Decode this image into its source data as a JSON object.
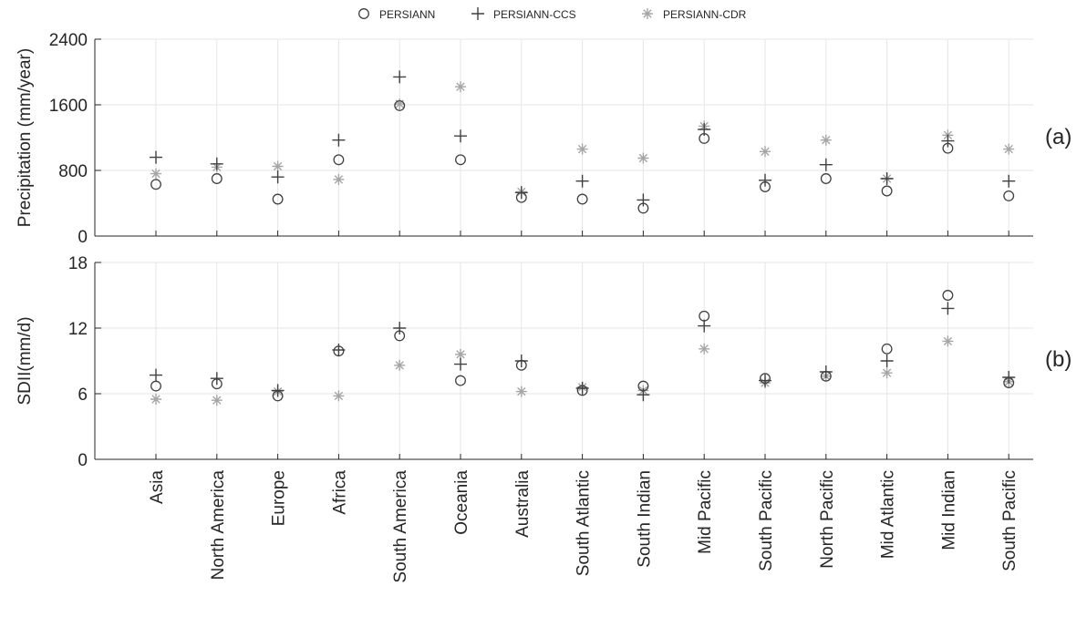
{
  "chart_data": [
    {
      "type": "scatter",
      "panel_label": "(a)",
      "ylabel": "Precipitation (mm/year)",
      "ylim": [
        0,
        2400
      ],
      "yticks": [
        0,
        800,
        1600,
        2400
      ],
      "categories": [
        "Asia",
        "North America",
        "Europe",
        "Africa",
        "South America",
        "Oceania",
        "Australia",
        "South Atlantic",
        "South Indian",
        "Mid Pacific",
        "South Pacific",
        "North Pacific",
        "Mid Atlantic",
        "Mid Indian",
        "South Pacific"
      ],
      "grid": true,
      "series": [
        {
          "name": "PERSIANN",
          "marker": "circle",
          "color": "#404040",
          "values": [
            630,
            700,
            450,
            930,
            1590,
            930,
            470,
            450,
            340,
            1190,
            600,
            700,
            550,
            1070,
            490
          ]
        },
        {
          "name": "PERSIANN-CCS",
          "marker": "plus",
          "color": "#404040",
          "values": [
            960,
            880,
            720,
            1170,
            1940,
            1220,
            530,
            670,
            440,
            1300,
            680,
            870,
            700,
            1160,
            670
          ]
        },
        {
          "name": "PERSIANN-CDR",
          "marker": "asterisk",
          "color": "#a6a6a6",
          "values": [
            760,
            840,
            850,
            690,
            1610,
            1820,
            540,
            1060,
            950,
            1340,
            1030,
            1170,
            700,
            1230,
            1060
          ]
        }
      ]
    },
    {
      "type": "scatter",
      "panel_label": "(b)",
      "ylabel": "SDII(mm/d)",
      "ylim": [
        0,
        18
      ],
      "yticks": [
        0,
        6,
        12,
        18
      ],
      "categories": [
        "Asia",
        "North America",
        "Europe",
        "Africa",
        "South America",
        "Oceania",
        "Australia",
        "South Atlantic",
        "South Indian",
        "Mid Pacific",
        "South Pacific",
        "North Pacific",
        "Mid Atlantic",
        "Mid Indian",
        "South Pacific"
      ],
      "grid": true,
      "series": [
        {
          "name": "PERSIANN",
          "marker": "circle",
          "color": "#404040",
          "values": [
            6.7,
            6.9,
            5.8,
            9.9,
            11.3,
            7.2,
            8.6,
            6.3,
            6.7,
            13.1,
            7.4,
            7.6,
            10.1,
            15.0,
            7.0
          ]
        },
        {
          "name": "PERSIANN-CCS",
          "marker": "plus",
          "color": "#404040",
          "values": [
            7.7,
            7.4,
            6.3,
            10.0,
            12.0,
            8.7,
            9.0,
            6.5,
            5.9,
            12.2,
            7.2,
            8.0,
            9.0,
            13.8,
            7.5
          ]
        },
        {
          "name": "PERSIANN-CDR",
          "marker": "asterisk",
          "color": "#a6a6a6",
          "values": [
            5.5,
            5.4,
            6.2,
            5.8,
            8.6,
            9.6,
            6.2,
            6.6,
            6.3,
            10.1,
            7.0,
            7.6,
            7.9,
            10.8,
            7.1
          ]
        }
      ]
    }
  ]
}
